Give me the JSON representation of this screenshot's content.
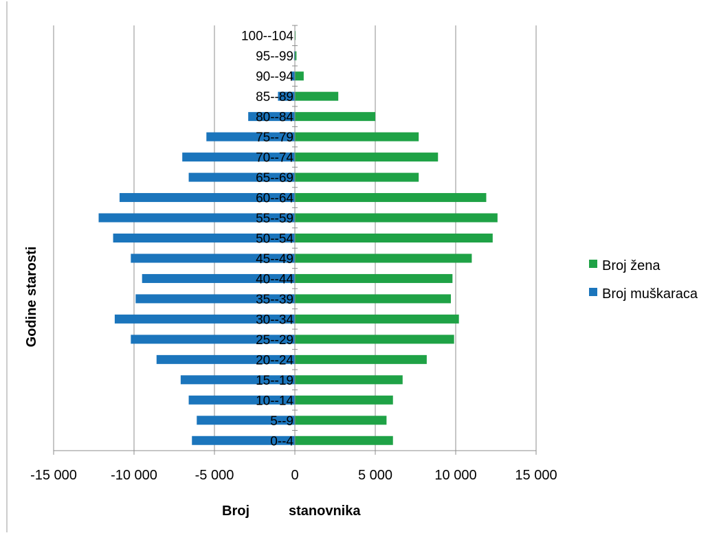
{
  "chart_data": {
    "type": "bar",
    "orientation": "horizontal",
    "title": "",
    "xlabel_parts": [
      "Broj",
      "stanovnika"
    ],
    "ylabel": "Godine starosti",
    "xlim": [
      -15000,
      15000
    ],
    "x_ticks": [
      -15000,
      -10000,
      -5000,
      0,
      5000,
      10000,
      15000
    ],
    "x_tick_labels": [
      "-15 000",
      "-10 000",
      "-5 000",
      "0",
      "5 000",
      "10 000",
      "15 000"
    ],
    "grid": "vertical",
    "legend_position": "right",
    "categories": [
      "0--4",
      "5--9",
      "10--14",
      "15--19",
      "20--24",
      "25--29",
      "30--34",
      "35--39",
      "40--44",
      "45--49",
      "50--54",
      "55--59",
      "60--64",
      "65--69",
      "70--74",
      "75--79",
      "80--84",
      "85--89",
      "90--94",
      "95--99",
      "100--104"
    ],
    "series": [
      {
        "name": "Broj žena",
        "color": "#1fa246",
        "values": [
          6100,
          5700,
          6100,
          6700,
          8200,
          9900,
          10200,
          9700,
          9800,
          11000,
          12300,
          12600,
          11900,
          7700,
          8900,
          7700,
          5000,
          2700,
          550,
          100,
          40
        ]
      },
      {
        "name": "Broj muškaraca",
        "color": "#1b75bc",
        "values": [
          -6400,
          -6100,
          -6600,
          -7100,
          -8600,
          -10200,
          -11200,
          -9900,
          -9500,
          -10200,
          -11300,
          -12200,
          -10900,
          -6600,
          -7000,
          -5500,
          -2900,
          -1050,
          -250,
          -50,
          -20
        ]
      }
    ]
  }
}
